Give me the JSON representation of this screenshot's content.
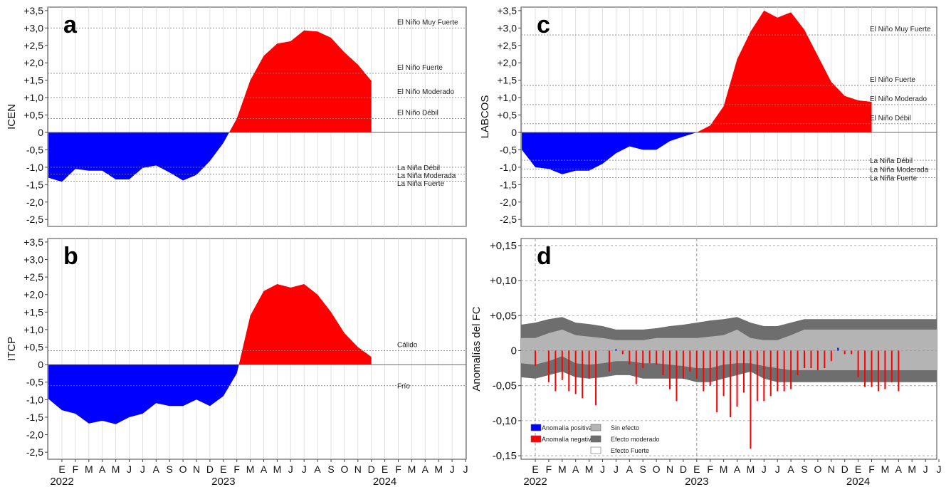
{
  "colors": {
    "positive": "#ff0000",
    "negative": "#0000ff",
    "grid": "#d9d9d9",
    "threshold": "#808080",
    "band_outer": "#6e6e6e",
    "band_inner": "#b4b4b4"
  },
  "month_labels": [
    "E",
    "F",
    "M",
    "A",
    "M",
    "J",
    "J",
    "A",
    "S",
    "O",
    "N",
    "D",
    "E",
    "F",
    "M",
    "A",
    "M",
    "J",
    "J",
    "A",
    "S",
    "O",
    "N",
    "D",
    "E",
    "F",
    "M",
    "A",
    "M",
    "J",
    "J"
  ],
  "year_labels": [
    "2022",
    "2023",
    "2024"
  ],
  "chart_data": [
    {
      "id": "a",
      "panel_letter": "a",
      "type": "area",
      "ylabel": "ICEN",
      "ylim": [
        -2.7,
        3.6
      ],
      "ytick_values": [
        3.5,
        3.0,
        2.5,
        2.0,
        1.5,
        1.0,
        0.5,
        0,
        -0.5,
        -1.0,
        -1.5,
        -2.0,
        -2.5
      ],
      "ytick_labels": [
        "+3,5",
        "+3,0",
        "+2,5",
        "+2,0",
        "+1,5",
        "+1,0",
        "+0,5",
        "0",
        "-0,5",
        "-1,0",
        "-1,5",
        "-2,0",
        "-2,5"
      ],
      "x_start_month_index": -1,
      "values": [
        -1.3,
        -1.42,
        -1.05,
        -1.1,
        -1.1,
        -1.35,
        -1.35,
        -1.02,
        -0.95,
        -1.15,
        -1.38,
        -1.22,
        -0.82,
        -0.3,
        0.4,
        1.5,
        2.2,
        2.55,
        2.62,
        2.93,
        2.9,
        2.72,
        2.3,
        1.95,
        1.48
      ],
      "thresholds": [
        {
          "value": 3.0,
          "label": "El Niño Muy Fuerte"
        },
        {
          "value": 1.7,
          "label": "El Niño Fuerte"
        },
        {
          "value": 1.0,
          "label": "El Niño Moderado"
        },
        {
          "value": 0.4,
          "label": "El Niño Débil"
        },
        {
          "value": -1.0,
          "label": "La Niña Débil"
        },
        {
          "value": -1.2,
          "label": "La Niña Moderada"
        },
        {
          "value": -1.4,
          "label": "La Niña Fuerte"
        }
      ]
    },
    {
      "id": "b",
      "panel_letter": "b",
      "type": "area",
      "ylabel": "ITCP",
      "ylim": [
        -2.7,
        3.6
      ],
      "ytick_values": [
        3.5,
        3.0,
        2.5,
        2.0,
        1.5,
        1.0,
        0.5,
        0,
        -0.5,
        -1.0,
        -1.5,
        -2.0,
        -2.5
      ],
      "ytick_labels": [
        "+3,5",
        "+3,0",
        "+2,5",
        "+2,0",
        "+1,5",
        "+1,0",
        "+0,5",
        "0",
        "-0,5",
        "-1,0",
        "-1,5",
        "-2,0",
        "-2,5"
      ],
      "x_start_month_index": -1,
      "values": [
        -0.98,
        -1.3,
        -1.4,
        -1.68,
        -1.6,
        -1.7,
        -1.5,
        -1.4,
        -1.1,
        -1.18,
        -1.18,
        -1.0,
        -1.18,
        -0.9,
        -0.25,
        1.4,
        2.1,
        2.3,
        2.2,
        2.3,
        2.0,
        1.5,
        0.9,
        0.5,
        0.22
      ],
      "thresholds": [
        {
          "value": 0.4,
          "label": "Cálido"
        },
        {
          "value": -0.6,
          "label": "Frío"
        }
      ]
    },
    {
      "id": "c",
      "panel_letter": "c",
      "type": "area",
      "ylabel": "LABCOS",
      "ylim": [
        -2.7,
        3.6
      ],
      "ytick_values": [
        3.5,
        3.0,
        2.5,
        2.0,
        1.5,
        1.0,
        0.5,
        0,
        -0.5,
        -1.0,
        -1.5,
        -2.0,
        -2.5
      ],
      "ytick_labels": [
        "+3,5",
        "+3,0",
        "+2,5",
        "+2,0",
        "+1,5",
        "+1,0",
        "+0,5",
        "0",
        "-0,5",
        "-1,0",
        "-1,5",
        "-2,0",
        "-2,5"
      ],
      "x_start_month_index": -1,
      "values": [
        -0.5,
        -1.0,
        -1.05,
        -1.2,
        -1.1,
        -1.1,
        -0.9,
        -0.6,
        -0.4,
        -0.5,
        -0.5,
        -0.25,
        -0.12,
        0.0,
        0.2,
        0.75,
        2.1,
        2.9,
        3.5,
        3.3,
        3.45,
        2.95,
        2.2,
        1.45,
        1.05,
        0.92,
        0.88
      ],
      "thresholds": [
        {
          "value": 2.8,
          "label": "El Niño Muy Fuerte"
        },
        {
          "value": 1.35,
          "label": "El Niño Fuerte"
        },
        {
          "value": 0.8,
          "label": "El Niño Moderado"
        },
        {
          "value": 0.25,
          "label": "El Niño Débil"
        },
        {
          "value": -0.8,
          "label": "La Niña Débil"
        },
        {
          "value": -1.05,
          "label": "La Niña Moderada"
        },
        {
          "value": -1.3,
          "label": "La Niña Fuerte"
        }
      ]
    },
    {
      "id": "d",
      "panel_letter": "d",
      "type": "bar",
      "ylabel": "Anomalías del FC",
      "ylim": [
        -0.155,
        0.16
      ],
      "ytick_values": [
        0.15,
        0.1,
        0.05,
        0,
        -0.05,
        -0.1,
        -0.15
      ],
      "ytick_labels": [
        "+0,15",
        "+0,10",
        "+0,05",
        "0",
        "-0,05",
        "-0,10",
        "-0,15"
      ],
      "x_start_month_index": 0,
      "bar_step_months": 0.5,
      "values": [
        -0.022,
        0,
        -0.045,
        -0.058,
        -0.042,
        -0.058,
        -0.062,
        -0.068,
        -0.04,
        -0.078,
        0,
        -0.03,
        0.002,
        -0.005,
        -0.02,
        -0.048,
        -0.025,
        -0.018,
        -0.02,
        -0.035,
        -0.055,
        -0.072,
        -0.04,
        -0.03,
        -0.04,
        -0.058,
        -0.05,
        -0.088,
        -0.065,
        -0.095,
        -0.08,
        -0.06,
        -0.14,
        -0.072,
        -0.072,
        -0.065,
        -0.058,
        -0.058,
        -0.055,
        -0.035,
        -0.025,
        -0.025,
        -0.028,
        -0.025,
        -0.015,
        0.004,
        -0.005,
        -0.005,
        -0.038,
        -0.052,
        -0.052,
        -0.058,
        -0.055,
        -0.045,
        -0.058
      ],
      "band_moderate_upper": [
        0.037,
        0.04,
        0.045,
        0.048,
        0.04,
        0.038,
        0.035,
        0.03,
        0.03,
        0.03,
        0.032,
        0.035,
        0.037,
        0.04,
        0.043,
        0.045,
        0.048,
        0.04,
        0.035,
        0.035,
        0.04,
        0.045,
        0.045,
        0.045,
        0.045,
        0.045,
        0.045,
        0.045,
        0.045,
        0.045
      ],
      "band_weak_upper": [
        0.018,
        0.018,
        0.025,
        0.03,
        0.022,
        0.02,
        0.018,
        0.015,
        0.015,
        0.015,
        0.018,
        0.018,
        0.018,
        0.018,
        0.02,
        0.022,
        0.03,
        0.018,
        0.015,
        0.015,
        0.022,
        0.03,
        0.03,
        0.03,
        0.03,
        0.03,
        0.03,
        0.03,
        0.03,
        0.03
      ],
      "band_weak_lower": [
        -0.018,
        -0.02,
        -0.015,
        -0.008,
        -0.018,
        -0.02,
        -0.018,
        -0.015,
        -0.015,
        -0.018,
        -0.018,
        -0.02,
        -0.022,
        -0.025,
        -0.025,
        -0.02,
        -0.018,
        -0.018,
        -0.022,
        -0.025,
        -0.028,
        -0.028,
        -0.028,
        -0.028,
        -0.028,
        -0.028,
        -0.028,
        -0.028,
        -0.028,
        -0.028
      ],
      "band_moderate_lower": [
        -0.038,
        -0.04,
        -0.035,
        -0.03,
        -0.038,
        -0.04,
        -0.038,
        -0.035,
        -0.035,
        -0.04,
        -0.04,
        -0.04,
        -0.04,
        -0.045,
        -0.045,
        -0.04,
        -0.035,
        -0.03,
        -0.04,
        -0.045,
        -0.045,
        -0.045,
        -0.045,
        -0.045,
        -0.045,
        -0.045,
        -0.045,
        -0.045,
        -0.045,
        -0.045
      ],
      "legend": [
        {
          "label": "Anomalía positiva",
          "color": "#0000ff"
        },
        {
          "label": "Anomalía negativa",
          "color": "#ff0000"
        },
        {
          "label": "Sin efecto",
          "color": "#b4b4b4"
        },
        {
          "label": "Efecto moderado",
          "color": "#6e6e6e"
        },
        {
          "label": "Efecto Fuerte",
          "color": "#ffffff"
        }
      ],
      "legend_position": "bottom-left",
      "grid": "horizontal dashed, vertical dashed at January"
    }
  ]
}
